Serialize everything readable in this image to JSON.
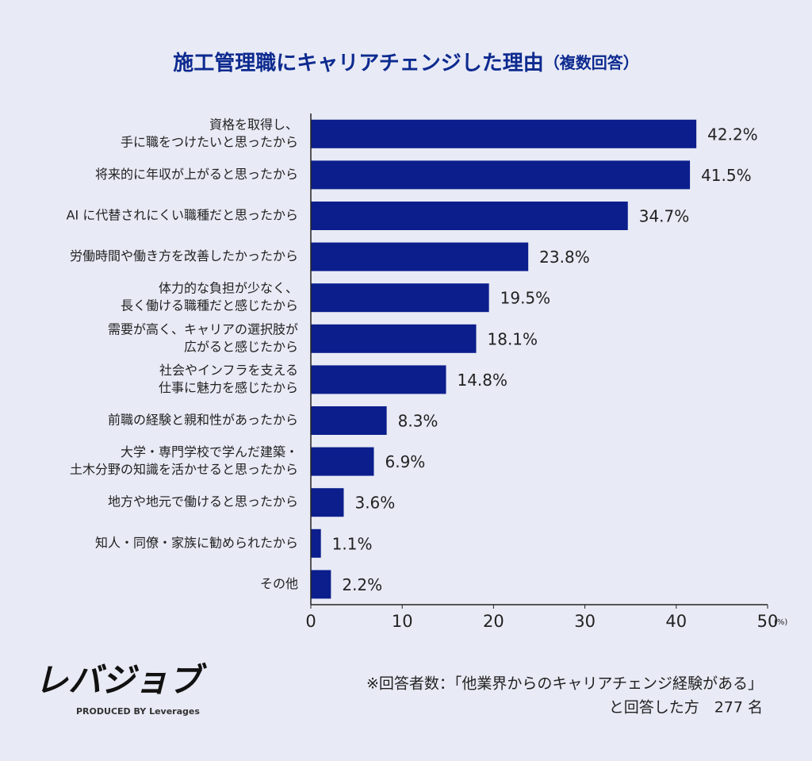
{
  "chart_data": {
    "type": "bar",
    "orientation": "horizontal",
    "title": "施工管理職にキャリアチェンジした理由",
    "subtitle": "（複数回答）",
    "categories": [
      [
        "資格を取得し、",
        "手に職をつけたいと思ったから"
      ],
      [
        "将来的に年収が上がると思ったから"
      ],
      [
        "AI に代替されにくい職種だと思ったから"
      ],
      [
        "労働時間や働き方を改善したかったから"
      ],
      [
        "体力的な負担が少なく、",
        "長く働ける職種だと感じたから"
      ],
      [
        "需要が高く、キャリアの選択肢が",
        "広がると感じたから"
      ],
      [
        "社会やインフラを支える",
        "仕事に魅力を感じたから"
      ],
      [
        "前職の経験と親和性があったから"
      ],
      [
        "大学・専門学校で学んだ建築・",
        "土木分野の知識を活かせると思ったから"
      ],
      [
        "地方や地元で働けると思ったから"
      ],
      [
        "知人・同僚・家族に勧められたから"
      ],
      [
        "その他"
      ]
    ],
    "values": [
      42.2,
      41.5,
      34.7,
      23.8,
      19.5,
      18.1,
      14.8,
      8.3,
      6.9,
      3.6,
      1.1,
      2.2
    ],
    "value_labels": [
      "42.2%",
      "41.5%",
      "34.7%",
      "23.8%",
      "19.5%",
      "18.1%",
      "14.8%",
      "8.3%",
      "6.9%",
      "3.6%",
      "1.1%",
      "2.2%"
    ],
    "color": "#0b1e8c",
    "xlim": [
      0,
      50
    ],
    "xticks": [
      0,
      10,
      20,
      30,
      40,
      50
    ],
    "x_unit": "(%)",
    "grid": false,
    "note": [
      "※回答者数：「他業界からのキャリアチェンジ経験がある」",
      "と回答した方　277 名"
    ],
    "brand": {
      "logo": "レバジョブ",
      "credit": "PRODUCED BY Leverages"
    }
  }
}
